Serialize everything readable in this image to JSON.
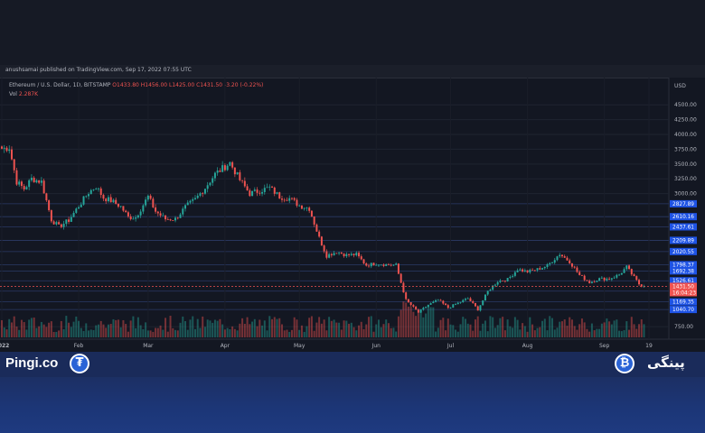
{
  "publish_text": "anushsamai published on TradingView.com, Sep 17, 2022 07:55 UTC",
  "legend": {
    "symbol": "Ethereum / U.S. Dollar, 1D, BITSTAMP",
    "open": "O1433.80",
    "high": "H1456.00",
    "low": "L1425.00",
    "close": "C1431.50",
    "change": "-3.20 (-0.22%)",
    "vol_label": "Vol",
    "vol_value": "2.287K"
  },
  "colors": {
    "up": "#26a69a",
    "down": "#ef5350",
    "price_tag": "#1e53e5",
    "current_tag": "#ef5350"
  },
  "chart_data": {
    "type": "candlestick",
    "symbol": "Ethereum / U.S. Dollar",
    "interval": "1D",
    "exchange": "BITSTAMP",
    "currency": "USD",
    "ylim": [
      600,
      4900
    ],
    "y_ticks": [
      "4500.00",
      "4250.00",
      "4000.00",
      "3750.00",
      "3500.00",
      "3250.00",
      "3000.00",
      "750.00"
    ],
    "x_ticks": [
      "2022",
      "Feb",
      "Mar",
      "Apr",
      "May",
      "Jun",
      "Jul",
      "Aug",
      "Sep",
      "19"
    ],
    "levels": [
      "2827.89",
      "2610.16",
      "2437.61",
      "2209.89",
      "2020.55",
      "1798.37",
      "1692.38",
      "1526.61",
      "1350.84",
      "1169.35",
      "1040.70"
    ],
    "last_price": "1431.50",
    "countdown": "16:04:23",
    "closes": [
      {
        "date": "2022-01-01",
        "close": 3760
      },
      {
        "date": "2022-01-04",
        "close": 3780
      },
      {
        "date": "2022-01-07",
        "close": 3200
      },
      {
        "date": "2022-01-10",
        "close": 3080
      },
      {
        "date": "2022-01-13",
        "close": 3250
      },
      {
        "date": "2022-01-17",
        "close": 3200
      },
      {
        "date": "2022-01-21",
        "close": 2560
      },
      {
        "date": "2022-01-24",
        "close": 2440
      },
      {
        "date": "2022-01-28",
        "close": 2550
      },
      {
        "date": "2022-02-01",
        "close": 2790
      },
      {
        "date": "2022-02-05",
        "close": 3020
      },
      {
        "date": "2022-02-08",
        "close": 3120
      },
      {
        "date": "2022-02-11",
        "close": 2930
      },
      {
        "date": "2022-02-14",
        "close": 2880
      },
      {
        "date": "2022-02-18",
        "close": 2780
      },
      {
        "date": "2022-02-21",
        "close": 2600
      },
      {
        "date": "2022-02-24",
        "close": 2600
      },
      {
        "date": "2022-03-01",
        "close": 2950
      },
      {
        "date": "2022-03-04",
        "close": 2700
      },
      {
        "date": "2022-03-08",
        "close": 2570
      },
      {
        "date": "2022-03-12",
        "close": 2570
      },
      {
        "date": "2022-03-16",
        "close": 2770
      },
      {
        "date": "2022-03-20",
        "close": 2900
      },
      {
        "date": "2022-03-24",
        "close": 3100
      },
      {
        "date": "2022-03-28",
        "close": 3330
      },
      {
        "date": "2022-04-03",
        "close": 3520
      },
      {
        "date": "2022-04-07",
        "close": 3230
      },
      {
        "date": "2022-04-11",
        "close": 3000
      },
      {
        "date": "2022-04-15",
        "close": 3050
      },
      {
        "date": "2022-04-19",
        "close": 3100
      },
      {
        "date": "2022-04-23",
        "close": 2950
      },
      {
        "date": "2022-04-27",
        "close": 2920
      },
      {
        "date": "2022-05-01",
        "close": 2800
      },
      {
        "date": "2022-05-05",
        "close": 2750
      },
      {
        "date": "2022-05-09",
        "close": 2250
      },
      {
        "date": "2022-05-12",
        "close": 1950
      },
      {
        "date": "2022-05-16",
        "close": 2020
      },
      {
        "date": "2022-05-20",
        "close": 1960
      },
      {
        "date": "2022-05-24",
        "close": 1970
      },
      {
        "date": "2022-05-28",
        "close": 1790
      },
      {
        "date": "2022-06-01",
        "close": 1820
      },
      {
        "date": "2022-06-05",
        "close": 1800
      },
      {
        "date": "2022-06-09",
        "close": 1790
      },
      {
        "date": "2022-06-13",
        "close": 1200
      },
      {
        "date": "2022-06-18",
        "close": 990
      },
      {
        "date": "2022-06-22",
        "close": 1120
      },
      {
        "date": "2022-06-26",
        "close": 1200
      },
      {
        "date": "2022-06-30",
        "close": 1070
      },
      {
        "date": "2022-07-04",
        "close": 1150
      },
      {
        "date": "2022-07-08",
        "close": 1230
      },
      {
        "date": "2022-07-12",
        "close": 1040
      },
      {
        "date": "2022-07-16",
        "close": 1350
      },
      {
        "date": "2022-07-20",
        "close": 1520
      },
      {
        "date": "2022-07-24",
        "close": 1550
      },
      {
        "date": "2022-07-28",
        "close": 1720
      },
      {
        "date": "2022-08-01",
        "close": 1680
      },
      {
        "date": "2022-08-05",
        "close": 1720
      },
      {
        "date": "2022-08-09",
        "close": 1780
      },
      {
        "date": "2022-08-14",
        "close": 1980
      },
      {
        "date": "2022-08-18",
        "close": 1850
      },
      {
        "date": "2022-08-22",
        "close": 1620
      },
      {
        "date": "2022-08-26",
        "close": 1500
      },
      {
        "date": "2022-08-30",
        "close": 1560
      },
      {
        "date": "2022-09-03",
        "close": 1560
      },
      {
        "date": "2022-09-07",
        "close": 1630
      },
      {
        "date": "2022-09-10",
        "close": 1760
      },
      {
        "date": "2022-09-13",
        "close": 1580
      },
      {
        "date": "2022-09-15",
        "close": 1470
      },
      {
        "date": "2022-09-17",
        "close": 1431.5
      }
    ]
  },
  "footer": {
    "brand_left": "Pingi.co",
    "tether_symbol": "₮",
    "bitcoin_symbol": "₿",
    "brand_right": "پینگی"
  }
}
